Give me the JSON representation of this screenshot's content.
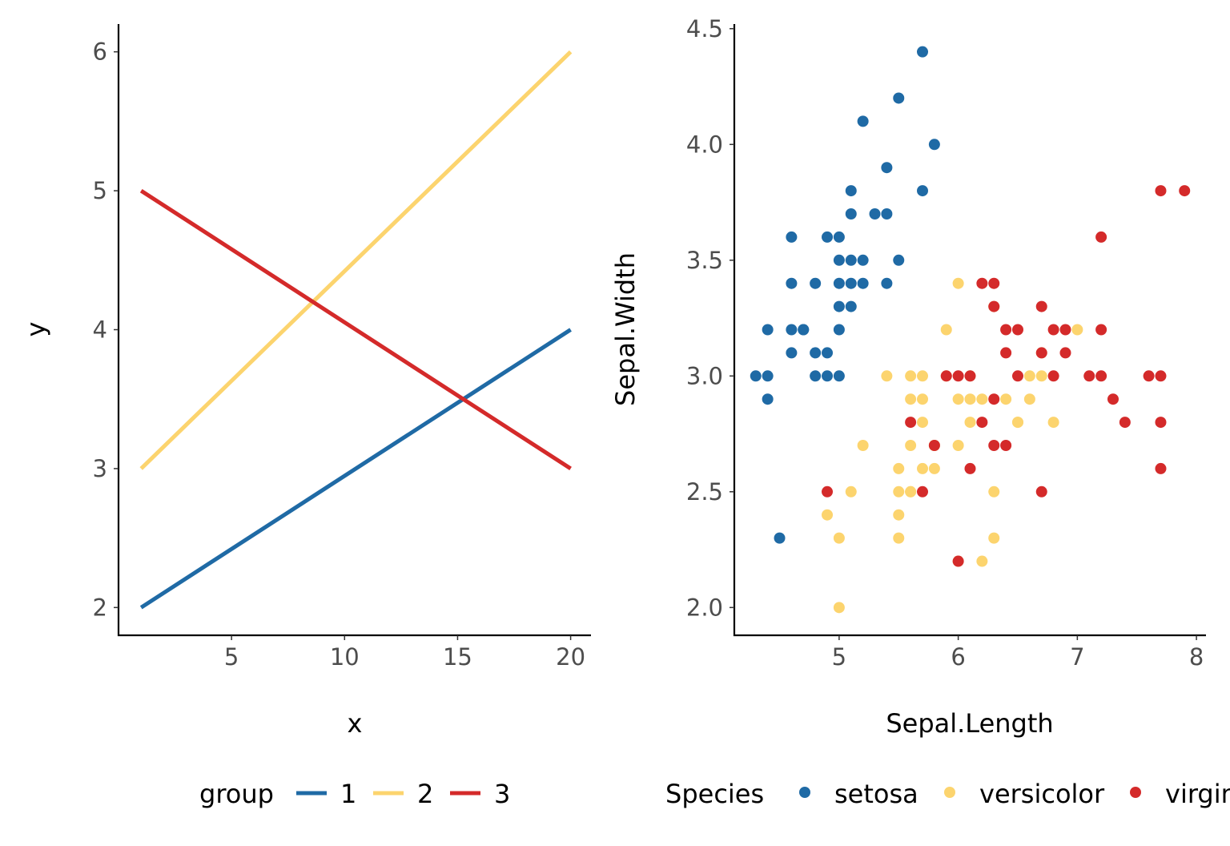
{
  "colors": {
    "blue": "#1f6aa5",
    "yellow": "#fcd46e",
    "red": "#d42a2a"
  },
  "chart_data": [
    {
      "type": "line",
      "xlabel": "x",
      "ylabel": "y",
      "xlim": [
        0.0,
        20.9
      ],
      "ylim": [
        1.8,
        6.2
      ],
      "xticks": [
        "5",
        "10",
        "15",
        "20"
      ],
      "yticks": [
        "2",
        "3",
        "4",
        "5",
        "6"
      ],
      "grid": false,
      "legend": {
        "title": "group",
        "position": "bottom"
      },
      "series": [
        {
          "name": "1",
          "color": "#1f6aa5",
          "x": [
            1,
            20
          ],
          "y": [
            2,
            4
          ]
        },
        {
          "name": "2",
          "color": "#fcd46e",
          "x": [
            1,
            20
          ],
          "y": [
            3,
            6
          ]
        },
        {
          "name": "3",
          "color": "#d42a2a",
          "x": [
            1,
            20
          ],
          "y": [
            5,
            3
          ]
        }
      ]
    },
    {
      "type": "scatter",
      "xlabel": "Sepal.Length",
      "ylabel": "Sepal.Width",
      "xlim": [
        4.12,
        8.08
      ],
      "ylim": [
        1.88,
        4.52
      ],
      "xticks": [
        "5",
        "6",
        "7",
        "8"
      ],
      "yticks": [
        "2.0",
        "2.5",
        "3.0",
        "3.5",
        "4.0",
        "4.5"
      ],
      "grid": false,
      "legend": {
        "title": "Species",
        "position": "bottom"
      },
      "series": [
        {
          "name": "setosa",
          "color": "#1f6aa5",
          "points": [
            [
              5.1,
              3.5
            ],
            [
              4.9,
              3.0
            ],
            [
              4.7,
              3.2
            ],
            [
              4.6,
              3.1
            ],
            [
              5.0,
              3.6
            ],
            [
              5.4,
              3.9
            ],
            [
              4.6,
              3.4
            ],
            [
              5.0,
              3.4
            ],
            [
              4.4,
              2.9
            ],
            [
              4.9,
              3.1
            ],
            [
              5.4,
              3.7
            ],
            [
              4.8,
              3.4
            ],
            [
              4.8,
              3.0
            ],
            [
              4.3,
              3.0
            ],
            [
              5.8,
              4.0
            ],
            [
              5.7,
              4.4
            ],
            [
              5.1,
              3.8
            ],
            [
              5.7,
              3.8
            ],
            [
              5.4,
              3.4
            ],
            [
              5.1,
              3.7
            ],
            [
              4.6,
              3.6
            ],
            [
              5.1,
              3.3
            ],
            [
              5.0,
              3.0
            ],
            [
              5.2,
              3.5
            ],
            [
              5.2,
              3.4
            ],
            [
              4.7,
              3.2
            ],
            [
              5.2,
              4.1
            ],
            [
              5.5,
              4.2
            ],
            [
              5.0,
              3.2
            ],
            [
              5.5,
              3.5
            ],
            [
              4.4,
              3.0
            ],
            [
              5.0,
              3.5
            ],
            [
              4.5,
              2.3
            ],
            [
              4.4,
              3.2
            ],
            [
              5.3,
              3.7
            ],
            [
              4.6,
              3.2
            ],
            [
              5.0,
              3.3
            ],
            [
              4.9,
              3.6
            ],
            [
              5.1,
              3.4
            ],
            [
              4.8,
              3.1
            ]
          ]
        },
        {
          "name": "versicolor",
          "color": "#fcd46e",
          "points": [
            [
              7.0,
              3.2
            ],
            [
              6.5,
              2.8
            ],
            [
              5.7,
              2.8
            ],
            [
              6.3,
              3.3
            ],
            [
              4.9,
              2.4
            ],
            [
              6.6,
              2.9
            ],
            [
              5.2,
              2.7
            ],
            [
              5.0,
              2.0
            ],
            [
              5.9,
              3.0
            ],
            [
              6.0,
              2.2
            ],
            [
              6.1,
              2.9
            ],
            [
              5.6,
              2.9
            ],
            [
              6.7,
              3.1
            ],
            [
              5.6,
              3.0
            ],
            [
              5.8,
              2.7
            ],
            [
              6.2,
              2.2
            ],
            [
              5.6,
              2.5
            ],
            [
              5.9,
              3.2
            ],
            [
              6.1,
              2.8
            ],
            [
              6.3,
              2.5
            ],
            [
              6.4,
              2.9
            ],
            [
              6.8,
              2.8
            ],
            [
              6.0,
              2.9
            ],
            [
              5.7,
              2.6
            ],
            [
              5.5,
              2.4
            ],
            [
              5.8,
              2.7
            ],
            [
              6.0,
              2.7
            ],
            [
              5.4,
              3.0
            ],
            [
              6.0,
              3.4
            ],
            [
              6.3,
              2.3
            ],
            [
              5.5,
              2.5
            ],
            [
              5.5,
              2.6
            ],
            [
              5.0,
              2.3
            ],
            [
              5.6,
              2.7
            ],
            [
              5.7,
              3.0
            ],
            [
              6.2,
              2.9
            ],
            [
              5.1,
              2.5
            ],
            [
              5.7,
              2.9
            ],
            [
              6.6,
              3.0
            ],
            [
              6.5,
              2.8
            ],
            [
              5.5,
              2.3
            ],
            [
              6.1,
              3.0
            ],
            [
              6.7,
              3.0
            ],
            [
              5.6,
              2.5
            ],
            [
              5.8,
              2.6
            ]
          ]
        },
        {
          "name": "virginica",
          "color": "#d42a2a",
          "points": [
            [
              6.3,
              3.3
            ],
            [
              5.8,
              2.7
            ],
            [
              7.1,
              3.0
            ],
            [
              6.3,
              2.9
            ],
            [
              6.5,
              3.0
            ],
            [
              7.6,
              3.0
            ],
            [
              4.9,
              2.5
            ],
            [
              7.3,
              2.9
            ],
            [
              6.7,
              2.5
            ],
            [
              7.2,
              3.6
            ],
            [
              6.5,
              3.2
            ],
            [
              6.4,
              2.7
            ],
            [
              6.8,
              3.0
            ],
            [
              5.7,
              2.5
            ],
            [
              6.4,
              3.2
            ],
            [
              7.7,
              3.8
            ],
            [
              7.7,
              2.6
            ],
            [
              6.0,
              2.2
            ],
            [
              6.9,
              3.2
            ],
            [
              5.6,
              2.8
            ],
            [
              7.7,
              2.8
            ],
            [
              6.3,
              2.7
            ],
            [
              6.7,
              3.3
            ],
            [
              7.2,
              3.2
            ],
            [
              6.2,
              2.8
            ],
            [
              6.1,
              3.0
            ],
            [
              7.2,
              3.0
            ],
            [
              7.4,
              2.8
            ],
            [
              7.9,
              3.8
            ],
            [
              6.1,
              2.6
            ],
            [
              7.7,
              3.0
            ],
            [
              6.3,
              3.4
            ],
            [
              6.4,
              3.1
            ],
            [
              6.0,
              3.0
            ],
            [
              6.9,
              3.1
            ],
            [
              6.7,
              3.1
            ],
            [
              6.8,
              3.2
            ],
            [
              6.2,
              3.4
            ],
            [
              5.9,
              3.0
            ]
          ]
        }
      ]
    }
  ]
}
